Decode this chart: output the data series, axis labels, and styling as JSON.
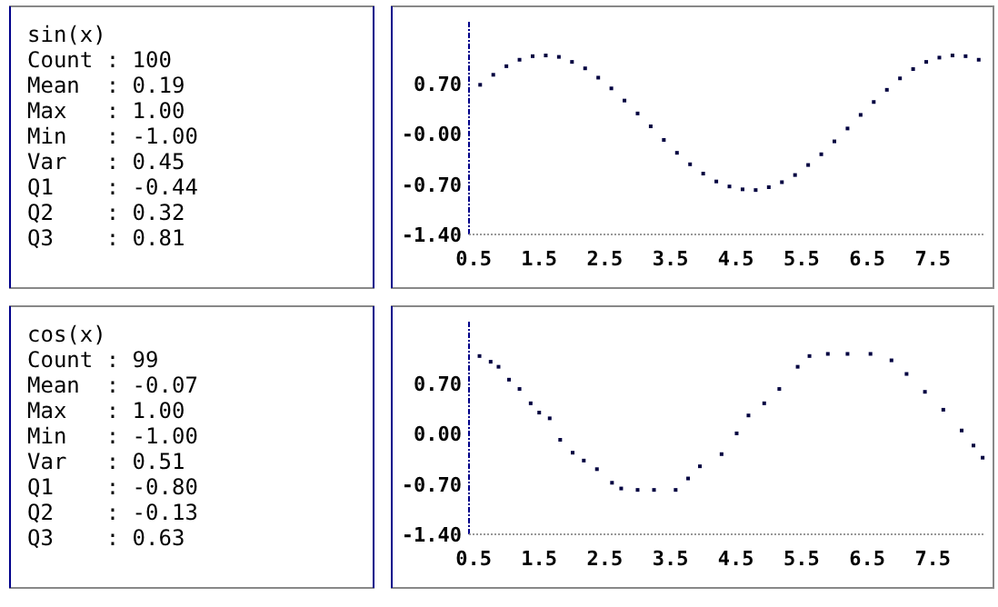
{
  "chart_data": [
    {
      "type": "other",
      "title": "sin(x)",
      "annotations": [
        "Count : 100",
        "Mean  : 0.19",
        "Max   : 1.00",
        "Min   : -1.00",
        "Var   : 0.45",
        "Q1    : -0.44",
        "Q2    : 0.32",
        "Q3    : 0.81"
      ]
    },
    {
      "type": "scatter",
      "marker": "square",
      "grid": false,
      "xlim": [
        0.43,
        8.3
      ],
      "ylim": [
        -1.4,
        1.57
      ],
      "xticks": [
        0.5,
        1.5,
        2.5,
        3.5,
        4.5,
        5.5,
        6.5,
        7.5
      ],
      "yticks": [
        {
          "value": -1.4,
          "label": "-1.40"
        },
        {
          "value": -0.7,
          "label": "-0.70"
        },
        {
          "value": 0,
          "label": "-0.00"
        },
        {
          "value": 0.7,
          "label": "0.70"
        }
      ],
      "series": [
        {
          "color": "#000040",
          "x": [
            0.6,
            0.8,
            1.0,
            1.2,
            1.4,
            1.6,
            1.8,
            2.0,
            2.2,
            2.4,
            2.6,
            2.8,
            3.0,
            3.2,
            3.4,
            3.6,
            3.8,
            4.0,
            4.2,
            4.4,
            4.6,
            4.8,
            5.0,
            5.2,
            5.4,
            5.6,
            5.8,
            6.0,
            6.2,
            6.4,
            6.6,
            6.8,
            7.0,
            7.2,
            7.4,
            7.6,
            7.8,
            8.0,
            8.2
          ],
          "values": [
            0.69,
            0.83,
            0.95,
            1.04,
            1.09,
            1.1,
            1.08,
            1.01,
            0.92,
            0.79,
            0.64,
            0.47,
            0.29,
            0.11,
            -0.08,
            -0.26,
            -0.42,
            -0.55,
            -0.66,
            -0.73,
            -0.77,
            -0.78,
            -0.74,
            -0.67,
            -0.57,
            -0.43,
            -0.28,
            -0.1,
            0.08,
            0.27,
            0.45,
            0.62,
            0.78,
            0.91,
            1.01,
            1.07,
            1.1,
            1.09,
            1.04
          ]
        }
      ]
    },
    {
      "type": "other",
      "title": "cos(x)",
      "annotations": [
        "Count : 99",
        "Mean  : -0.07",
        "Max   : 1.00",
        "Min   : -1.00",
        "Var   : 0.51",
        "Q1    : -0.80",
        "Q2    : -0.13",
        "Q3    : 0.63"
      ]
    },
    {
      "type": "scatter",
      "marker": "square",
      "grid": false,
      "xlim": [
        0.43,
        8.3
      ],
      "ylim": [
        -1.4,
        1.57
      ],
      "xticks": [
        0.5,
        1.5,
        2.5,
        3.5,
        4.5,
        5.5,
        6.5,
        7.5
      ],
      "yticks": [
        {
          "value": -1.4,
          "label": "-1.40"
        },
        {
          "value": -0.7,
          "label": "-0.70"
        },
        {
          "value": 0,
          "label": "0.00"
        },
        {
          "value": 0.7,
          "label": "0.70"
        }
      ],
      "series": [
        {
          "color": "#000040",
          "x": [
            0.59,
            0.76,
            0.88,
            1.04,
            1.2,
            1.37,
            1.5,
            1.66,
            1.82,
            2.01,
            2.18,
            2.38,
            2.61,
            2.75,
            3.0,
            3.25,
            3.58,
            3.77,
            3.95,
            4.28,
            4.51,
            4.69,
            4.93,
            5.16,
            5.44,
            5.62,
            5.9,
            6.2,
            6.55,
            6.87,
            7.1,
            7.38,
            7.66,
            7.94,
            8.12,
            8.26
          ],
          "values": [
            1.09,
            1.01,
            0.94,
            0.76,
            0.63,
            0.43,
            0.3,
            0.22,
            -0.08,
            -0.26,
            -0.37,
            -0.49,
            -0.68,
            -0.76,
            -0.78,
            -0.78,
            -0.78,
            -0.62,
            -0.45,
            -0.28,
            0.01,
            0.26,
            0.43,
            0.63,
            0.94,
            1.09,
            1.12,
            1.12,
            1.12,
            1.03,
            0.84,
            0.59,
            0.34,
            0.05,
            -0.16,
            -0.33
          ]
        }
      ]
    }
  ]
}
